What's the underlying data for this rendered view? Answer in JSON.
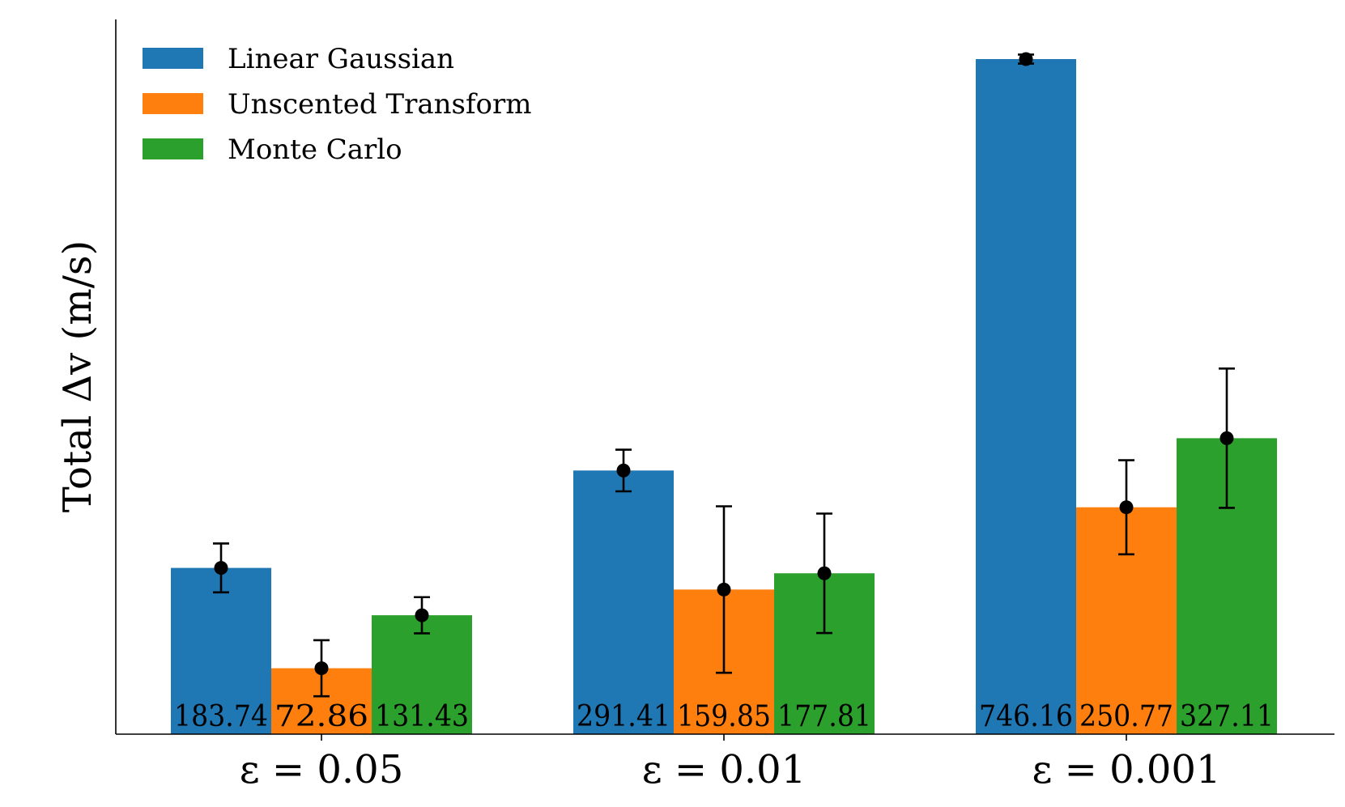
{
  "chart_data": {
    "type": "bar",
    "title": "",
    "xlabel": "",
    "ylabel": "Total Δv (m/s)",
    "categories": [
      "ε = 0.05",
      "ε = 0.01",
      "ε = 0.001"
    ],
    "series": [
      {
        "name": "Linear Gaussian",
        "color": "#1f77b4",
        "values": [
          183.74,
          291.41,
          746.16
        ],
        "error": [
          27,
          23,
          5
        ]
      },
      {
        "name": "Unscented Transform",
        "color": "#ff7f0e",
        "values": [
          72.86,
          159.85,
          250.77
        ],
        "error": [
          31,
          92,
          52
        ]
      },
      {
        "name": "Monte Carlo",
        "color": "#2ca02c",
        "values": [
          131.43,
          177.81,
          327.11
        ],
        "error": [
          20,
          66,
          77
        ]
      }
    ],
    "ylim": [
      0,
      790
    ],
    "yticks_visible": false,
    "legend": "top-left",
    "grid": false
  }
}
